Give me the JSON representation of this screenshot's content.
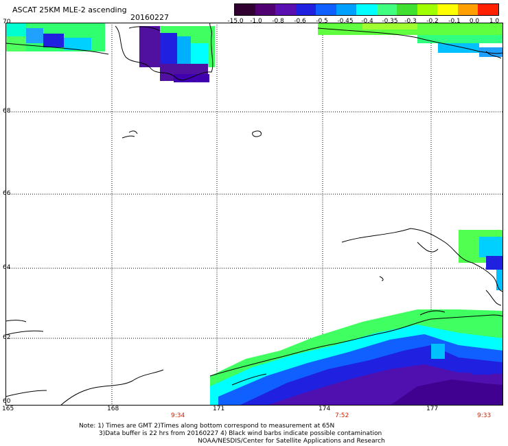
{
  "header": {
    "title": "ASCAT 25KM MLE-2 ascending",
    "date": "20160227"
  },
  "colorbar": {
    "labels": [
      "-15.0",
      "-1.0",
      "-0.8",
      "-0.6",
      "-0.5",
      "-0.45",
      "-0.4",
      "-0.35",
      "-0.3",
      "-0.2",
      "-0.1",
      "0.0",
      "1.0"
    ],
    "colors": [
      "#300030",
      "#500070",
      "#5a10b0",
      "#2020e0",
      "#1060ff",
      "#00a0ff",
      "#00ffff",
      "#40ff80",
      "#40e030",
      "#a0ff00",
      "#ffff00",
      "#ffa000",
      "#ff2000"
    ]
  },
  "map": {
    "lat_labels": [
      "70",
      "68",
      "66",
      "64",
      "62",
      "60"
    ],
    "lon_labels": [
      "165",
      "168",
      "171",
      "174",
      "177"
    ]
  },
  "times": [
    "9:34",
    "7:52",
    "9:33"
  ],
  "notes": {
    "line1": "Note: 1) Times are GMT 2)Times along bottom correspond to measurement at 65N",
    "line2": "3)Data buffer is 22 hrs from 20160227 4) Black wind barbs indicate possible contamination",
    "line3": "NOAA/NESDIS/Center for Satellite Applications and Research"
  }
}
